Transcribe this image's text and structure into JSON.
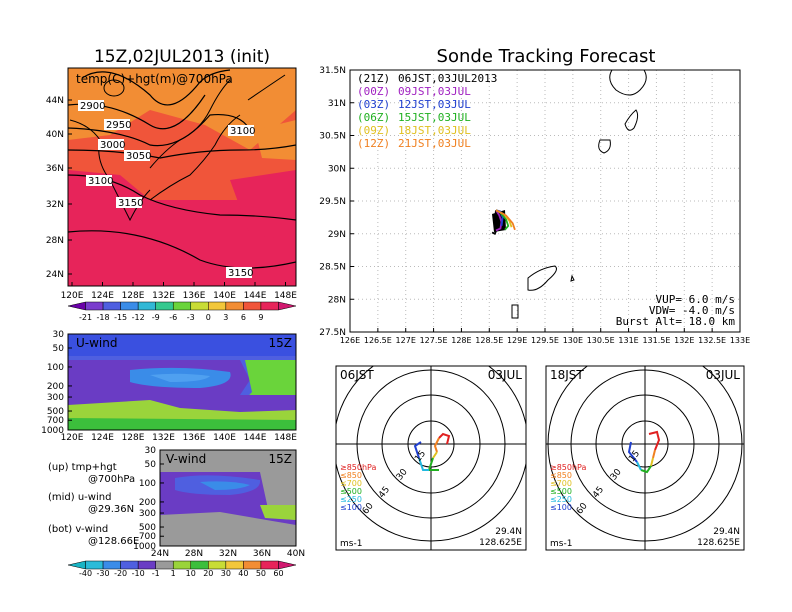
{
  "left_panel": {
    "title": "15Z,02JUL2013 (init)",
    "map_label": "temp(C)+hgt(m)@700hPa",
    "lat_labels": [
      "44N",
      "40N",
      "36N",
      "32N",
      "28N",
      "24N"
    ],
    "lon_labels": [
      "120E",
      "124E",
      "128E",
      "132E",
      "136E",
      "140E",
      "144E",
      "148E"
    ],
    "contours": [
      {
        "label": "2900"
      },
      {
        "label": "2950"
      },
      {
        "label": "3000"
      },
      {
        "label": "3050"
      },
      {
        "label": "3100"
      },
      {
        "label": "3100"
      },
      {
        "label": "3150"
      },
      {
        "label": "3150"
      }
    ],
    "temp_colorbar": {
      "labels": [
        "-21",
        "-18",
        "-15",
        "-12",
        "-9",
        "-6",
        "-3",
        "0",
        "3",
        "6",
        "9"
      ],
      "colors": [
        "#6a00a8",
        "#7a3ccd",
        "#4f5fe0",
        "#3a8ce8",
        "#31b8d6",
        "#35c98f",
        "#6ad43b",
        "#c8dc35",
        "#f2c73a",
        "#f28d34",
        "#f0553a",
        "#e7245a",
        "#d1186f"
      ]
    }
  },
  "u_panel": {
    "title": "U-wind",
    "time": "15Z",
    "p_labels": [
      "30",
      "50",
      "100",
      "200",
      "300",
      "500",
      "700",
      "1000"
    ],
    "lon_labels": [
      "120E",
      "124E",
      "128E",
      "132E",
      "136E",
      "140E",
      "144E",
      "148E"
    ]
  },
  "v_panel": {
    "title": "V-wind",
    "time": "15Z",
    "p_labels": [
      "30",
      "50",
      "100",
      "200",
      "300",
      "500",
      "700",
      "1000"
    ],
    "lat_labels": [
      "24N",
      "28N",
      "32N",
      "36N",
      "40N"
    ]
  },
  "notes": [
    {
      "line1": "(up) tmp+hgt",
      "line2": "@700hPa"
    },
    {
      "line1": "(mid) u-wind",
      "line2": "@29.36N"
    },
    {
      "line1": "(bot) v-wind",
      "line2": "@128.66E"
    }
  ],
  "wind_colorbar": {
    "labels": [
      "-40",
      "-30",
      "-20",
      "-10",
      "-1",
      "1",
      "10",
      "20",
      "30",
      "40",
      "50",
      "60"
    ],
    "colors": [
      "#19b4c4",
      "#2bbbd9",
      "#3a8ce8",
      "#4f5fe0",
      "#6a3cc4",
      "#9a9a9a",
      "#9ad43b",
      "#3cbf3c",
      "#c8dc35",
      "#f2c73a",
      "#f28d34",
      "#e7245a",
      "#d1186f"
    ]
  },
  "track_panel": {
    "title": "Sonde Tracking Forecast",
    "legend": [
      {
        "code": "(21Z)",
        "time": "06JST,03JUL2013",
        "color": "#000000"
      },
      {
        "code": "(00Z)",
        "time": "09JST,03JUL",
        "color": "#a020c0"
      },
      {
        "code": "(03Z)",
        "time": "12JST,03JUL",
        "color": "#2040d0"
      },
      {
        "code": "(06Z)",
        "time": "15JST,03JUL",
        "color": "#20b020"
      },
      {
        "code": "(09Z)",
        "time": "18JST,03JUL",
        "color": "#e0c020"
      },
      {
        "code": "(12Z)",
        "time": "21JST,03JUL",
        "color": "#f08020"
      }
    ],
    "lat_labels": [
      "31.5N",
      "31N",
      "30.5N",
      "30N",
      "29.5N",
      "29N",
      "28.5N",
      "28N",
      "27.5N"
    ],
    "lon_labels": [
      "126E",
      "126.5E",
      "127E",
      "127.5E",
      "128E",
      "128.5E",
      "129E",
      "129.5E",
      "130E",
      "130.5E",
      "131E",
      "131.5E",
      "132E",
      "132.5E",
      "133E"
    ],
    "info": [
      {
        "label": "VUP=",
        "value": "6.0",
        "unit": "m/s"
      },
      {
        "label": "VDW=",
        "value": "-4.0",
        "unit": "m/s"
      },
      {
        "label": "Burst Alt=",
        "value": "18.0",
        "unit": "km"
      }
    ]
  },
  "hodo1": {
    "time": "06JST",
    "date": "03JUL",
    "ring_labels": [
      "15",
      "30",
      "45",
      "60"
    ],
    "levels": [
      {
        "label": "≥850hPa",
        "color": "#e02020"
      },
      {
        "label": "≤850",
        "color": "#f08020"
      },
      {
        "label": "≤700",
        "color": "#e0c020"
      },
      {
        "label": "≤500",
        "color": "#20b020"
      },
      {
        "label": "≤250",
        "color": "#20b8e0"
      },
      {
        "label": "≤100",
        "color": "#2040d0"
      }
    ],
    "unit": "ms-1",
    "lat": "29.4N",
    "lon": "128.625E"
  },
  "hodo2": {
    "time": "18JST",
    "date": "03JUL",
    "ring_labels": [
      "15",
      "30",
      "45",
      "60"
    ],
    "levels": [
      {
        "label": "≥850hPa",
        "color": "#e02020"
      },
      {
        "label": "≤850",
        "color": "#f08020"
      },
      {
        "label": "≤700",
        "color": "#e0c020"
      },
      {
        "label": "≤500",
        "color": "#20b020"
      },
      {
        "label": "≤250",
        "color": "#20b8e0"
      },
      {
        "label": "≤100",
        "color": "#2040d0"
      }
    ],
    "unit": "ms-1",
    "lat": "29.4N",
    "lon": "128.625E"
  },
  "chart_data": [
    {
      "type": "heatmap",
      "title": "15Z,02JUL2013 (init)",
      "subtitle": "temp(C)+hgt(m)@700hPa",
      "xlim": [
        120,
        150
      ],
      "ylim": [
        22,
        48
      ],
      "contour_levels": [
        2900,
        2950,
        3000,
        3050,
        3100,
        3150
      ]
    },
    {
      "type": "heatmap",
      "title": "U-wind",
      "xlim": [
        120,
        150
      ],
      "ylim": [
        1000,
        30
      ]
    },
    {
      "type": "heatmap",
      "title": "V-wind",
      "xlim": [
        24,
        40
      ],
      "ylim": [
        1000,
        30
      ]
    },
    {
      "type": "line",
      "title": "Sonde Tracking Forecast",
      "xlim": [
        126,
        133
      ],
      "ylim": [
        27.5,
        31.5
      ],
      "series": [
        {
          "name": "(21Z)",
          "x": [
            128.62,
            128.6,
            128.64,
            128.6,
            128.55
          ],
          "y": [
            29.36,
            29.2,
            29.08,
            29.0,
            29.02
          ]
        },
        {
          "name": "(00Z)",
          "x": [
            128.62,
            128.68,
            128.72,
            128.7,
            128.62
          ],
          "y": [
            29.36,
            29.28,
            29.18,
            29.08,
            29.05
          ]
        },
        {
          "name": "(03Z)",
          "x": [
            128.62,
            128.7,
            128.74,
            128.72
          ],
          "y": [
            29.36,
            29.34,
            29.25,
            29.12
          ]
        },
        {
          "name": "(06Z)",
          "x": [
            128.62,
            128.7,
            128.8,
            128.84,
            128.78
          ],
          "y": [
            29.36,
            29.32,
            29.22,
            29.12,
            29.06
          ]
        },
        {
          "name": "(09Z)",
          "x": [
            128.62,
            128.76,
            128.86,
            128.9
          ],
          "y": [
            29.36,
            29.3,
            29.2,
            29.1
          ]
        },
        {
          "name": "(12Z)",
          "x": [
            128.62,
            128.8,
            128.92,
            128.96
          ],
          "y": [
            29.36,
            29.28,
            29.16,
            29.06
          ]
        }
      ]
    }
  ]
}
